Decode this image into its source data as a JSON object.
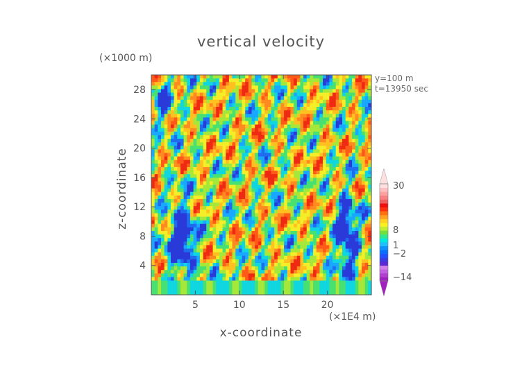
{
  "chart_data": {
    "type": "heatmap",
    "title": "vertical velocity",
    "xlabel": "x-coordinate",
    "ylabel": "z-coordinate",
    "x_unit": "(×1E4 m)",
    "y_unit": "(×1000 m)",
    "annotations": [
      "y=100 m",
      "t=13950 sec"
    ],
    "xlim": [
      0,
      25
    ],
    "ylim": [
      0,
      30
    ],
    "x_ticks": [
      5,
      10,
      15,
      20
    ],
    "y_ticks": [
      4,
      8,
      12,
      16,
      20,
      24,
      28
    ],
    "colorbar": {
      "labels": [
        "30",
        "8",
        "1",
        "−2",
        "−14"
      ],
      "colors": [
        "#a020c0",
        "#b040d0",
        "#c060e0",
        "#d080e8",
        "#5a2ad0",
        "#3a3ae0",
        "#2050ff",
        "#0a6fff",
        "#1090ff",
        "#20c0ff",
        "#00e8e0",
        "#30e890",
        "#70e040",
        "#c0ee30",
        "#f8f020",
        "#ffd020",
        "#ffa020",
        "#ff7010",
        "#ff3010",
        "#ee1010",
        "#f06060",
        "#f88080",
        "#fca0a0",
        "#ffc0c0",
        "#ffe0e0"
      ]
    },
    "grid": false,
    "legend": "colorbar-right"
  }
}
